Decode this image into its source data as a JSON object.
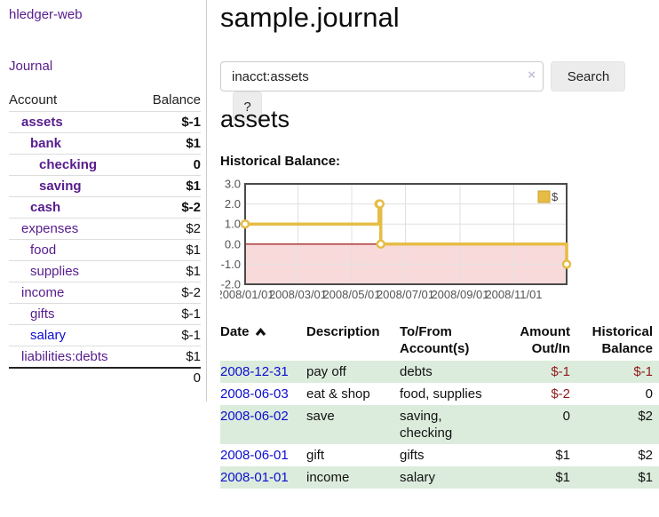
{
  "app": {
    "brand": "hledger-web"
  },
  "sidebar": {
    "journal_link": "Journal",
    "accounts": {
      "header_account": "Account",
      "header_balance": "Balance",
      "rows": [
        {
          "name": "assets",
          "depth": 1,
          "bold": true,
          "balance": "$-1"
        },
        {
          "name": "bank",
          "depth": 2,
          "bold": true,
          "balance": "$1"
        },
        {
          "name": "checking",
          "depth": 3,
          "bold": true,
          "balance": "0"
        },
        {
          "name": "saving",
          "depth": 3,
          "bold": true,
          "balance": "$1"
        },
        {
          "name": "cash",
          "depth": 2,
          "bold": true,
          "balance": "$-2"
        },
        {
          "name": "expenses",
          "depth": 1,
          "bold": false,
          "balance": "$2"
        },
        {
          "name": "food",
          "depth": 2,
          "bold": false,
          "balance": "$1"
        },
        {
          "name": "supplies",
          "depth": 2,
          "bold": false,
          "balance": "$1"
        },
        {
          "name": "income",
          "depth": 1,
          "bold": false,
          "balance": "$-2"
        },
        {
          "name": "gifts",
          "depth": 2,
          "bold": false,
          "balance": "$-1"
        },
        {
          "name": "salary",
          "depth": 2,
          "bold": false,
          "balance": "$-1",
          "link": "new"
        },
        {
          "name": "liabilities:debts",
          "depth": 1,
          "bold": false,
          "balance": "$1"
        }
      ],
      "total": "0"
    }
  },
  "main": {
    "title": "sample.journal",
    "search": {
      "value": "inacct:assets",
      "clear_icon": "×",
      "button": "Search",
      "help_button": "?"
    },
    "section_title": "assets",
    "chart_label": "Historical Balance:"
  },
  "chart_data": {
    "type": "line",
    "style": "step",
    "title": "Historical Balance:",
    "x_start": "2008-01-01",
    "x_span_days": 365,
    "ylim": [
      -2,
      3
    ],
    "y_ticks": [
      "3.0",
      "2.0",
      "1.0",
      "0.0",
      "-1.0",
      "-2.0"
    ],
    "y_tick_values": [
      3,
      2,
      1,
      0,
      -1,
      -2
    ],
    "x_ticks": [
      {
        "date": "2008/01/01",
        "label": "2008/01/01"
      },
      {
        "date": "2008/03/01",
        "label": "2008/03/01"
      },
      {
        "date": "2008/05/01",
        "label": "2008/05/01"
      },
      {
        "date": "2008/07/01",
        "label": "2008/07/01"
      },
      {
        "date": "2008/09/01",
        "label": "2008/09/01"
      },
      {
        "date": "2008/11/01",
        "label": "2008/11/01"
      }
    ],
    "series": [
      {
        "name": "$",
        "color": "#e6bc45",
        "border_color": "#c9a22e",
        "points": [
          [
            "2008-01-01",
            1
          ],
          [
            "2008-06-01",
            2
          ],
          [
            "2008-06-02",
            2
          ],
          [
            "2008-06-03",
            0
          ],
          [
            "2008-12-31",
            -1
          ]
        ]
      }
    ],
    "legend": {
      "label": "$",
      "position": "top-right"
    },
    "grid": true,
    "negative_region_fill": "#f9dada",
    "zero_line_color": "#8f0000",
    "plot_border_color": "#4a4a4a",
    "tick_label_color": "#545454",
    "grid_color": "#e0e0e0"
  },
  "register_table": {
    "headers": [
      "Date",
      "Description",
      "To/From Account(s)",
      "Amount Out/In",
      "Historical Balance"
    ],
    "sort_column": "Date",
    "sort_direction": "ascending",
    "rows": [
      {
        "date": "2008-12-31",
        "description": "pay off",
        "accounts": "debts",
        "amount": "$-1",
        "balance": "$-1"
      },
      {
        "date": "2008-06-03",
        "description": "eat & shop",
        "accounts": "food, supplies",
        "amount": "$-2",
        "balance": "0"
      },
      {
        "date": "2008-06-02",
        "description": "save",
        "accounts": "saving, checking",
        "amount": "0",
        "balance": "$2"
      },
      {
        "date": "2008-06-01",
        "description": "gift",
        "accounts": "gifts",
        "amount": "$1",
        "balance": "$2"
      },
      {
        "date": "2008-01-01",
        "description": "income",
        "accounts": "salary",
        "amount": "$1",
        "balance": "$1"
      }
    ]
  },
  "colors": {
    "visited_link": "#571c8d",
    "new_link": "#0d0dd1",
    "negative_strong": "#8e1a1a",
    "negative_muted": "#b96a66",
    "row_stripe_green": "#dcecdc",
    "button_bg": "#ececec",
    "divider": "#cccccc"
  }
}
